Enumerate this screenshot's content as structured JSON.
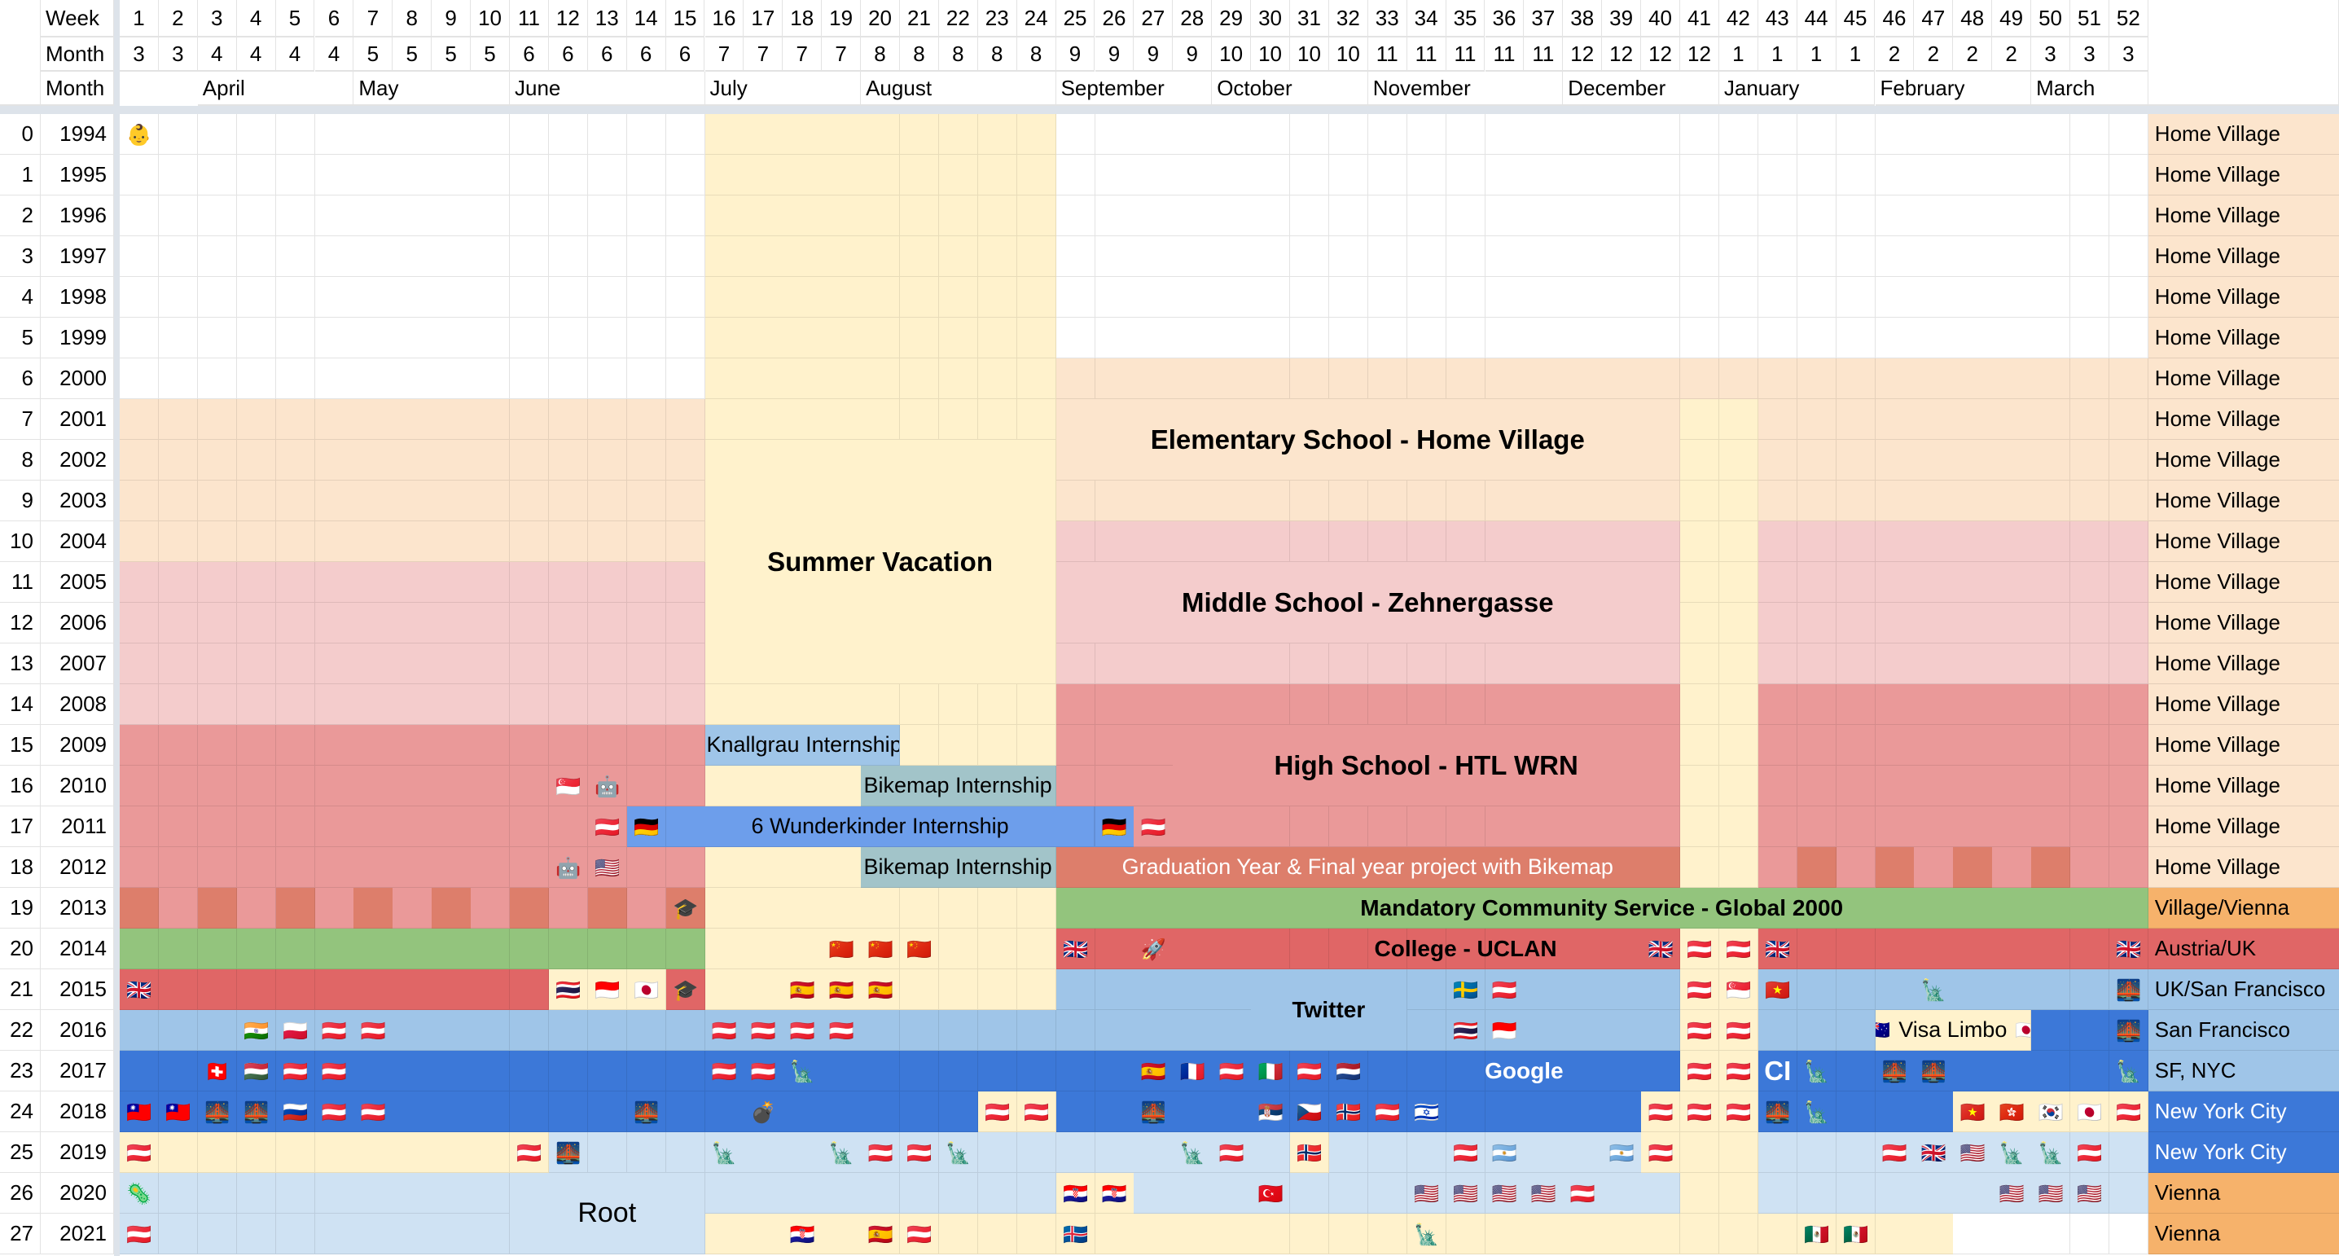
{
  "header": {
    "week_label": "Week",
    "month_label": "Month",
    "month_name_label": "Month",
    "weeks": [
      "1",
      "2",
      "3",
      "4",
      "5",
      "6",
      "7",
      "8",
      "9",
      "10",
      "11",
      "12",
      "13",
      "14",
      "15",
      "16",
      "17",
      "18",
      "19",
      "20",
      "21",
      "22",
      "23",
      "24",
      "25",
      "26",
      "27",
      "28",
      "29",
      "30",
      "31",
      "32",
      "33",
      "34",
      "35",
      "36",
      "37",
      "38",
      "39",
      "40",
      "41",
      "42",
      "43",
      "44",
      "45",
      "46",
      "47",
      "48",
      "49",
      "50",
      "51",
      "52"
    ],
    "months": [
      "3",
      "3",
      "4",
      "4",
      "4",
      "4",
      "5",
      "5",
      "5",
      "5",
      "6",
      "6",
      "6",
      "6",
      "6",
      "7",
      "7",
      "7",
      "7",
      "8",
      "8",
      "8",
      "8",
      "8",
      "9",
      "9",
      "9",
      "9",
      "10",
      "10",
      "10",
      "10",
      "11",
      "11",
      "11",
      "11",
      "11",
      "12",
      "12",
      "12",
      "12",
      "1",
      "1",
      "1",
      "1",
      "2",
      "2",
      "2",
      "2",
      "3",
      "3",
      "3"
    ],
    "month_names": [
      {
        "name": "April",
        "week": 3
      },
      {
        "name": "May",
        "week": 7
      },
      {
        "name": "June",
        "week": 11
      },
      {
        "name": "July",
        "week": 16
      },
      {
        "name": "August",
        "week": 20
      },
      {
        "name": "September",
        "week": 25
      },
      {
        "name": "October",
        "week": 29
      },
      {
        "name": "November",
        "week": 33
      },
      {
        "name": "December",
        "week": 38
      },
      {
        "name": "January",
        "week": 42
      },
      {
        "name": "February",
        "week": 46
      },
      {
        "name": "March",
        "week": 50
      }
    ]
  },
  "palette": {
    "W": "#ffffff",
    "Y": "#fff2cc",
    "P": "#fce5cd",
    "K": "#f4cccc",
    "R": "#ea9999",
    "O": "#dd7e6b",
    "G": "#93c47d",
    "C": "#e06666",
    "L": "#9fc5e8",
    "B": "#3c78d8",
    "S": "#cfe2f3",
    "T": "#a2c4c9",
    "M": "#6d9eeb",
    "A": "#f6b26b"
  },
  "rows": [
    {
      "n": "0",
      "year": "1994",
      "loc": "Home Village",
      "loc_bg": "P",
      "seg": [
        [
          "W",
          15
        ],
        [
          "Y",
          9
        ],
        [
          "W",
          28
        ]
      ],
      "icons": {
        "1": "👶"
      }
    },
    {
      "n": "1",
      "year": "1995",
      "loc": "Home Village",
      "loc_bg": "P",
      "seg": [
        [
          "W",
          15
        ],
        [
          "Y",
          9
        ],
        [
          "W",
          28
        ]
      ],
      "icons": {}
    },
    {
      "n": "2",
      "year": "1996",
      "loc": "Home Village",
      "loc_bg": "P",
      "seg": [
        [
          "W",
          15
        ],
        [
          "Y",
          9
        ],
        [
          "W",
          28
        ]
      ],
      "icons": {}
    },
    {
      "n": "3",
      "year": "1997",
      "loc": "Home Village",
      "loc_bg": "P",
      "seg": [
        [
          "W",
          15
        ],
        [
          "Y",
          9
        ],
        [
          "W",
          28
        ]
      ],
      "icons": {}
    },
    {
      "n": "4",
      "year": "1998",
      "loc": "Home Village",
      "loc_bg": "P",
      "seg": [
        [
          "W",
          15
        ],
        [
          "Y",
          9
        ],
        [
          "W",
          28
        ]
      ],
      "icons": {}
    },
    {
      "n": "5",
      "year": "1999",
      "loc": "Home Village",
      "loc_bg": "P",
      "seg": [
        [
          "W",
          15
        ],
        [
          "Y",
          9
        ],
        [
          "W",
          28
        ]
      ],
      "icons": {}
    },
    {
      "n": "6",
      "year": "2000",
      "loc": "Home Village",
      "loc_bg": "P",
      "seg": [
        [
          "W",
          15
        ],
        [
          "Y",
          9
        ],
        [
          "P",
          28
        ]
      ],
      "icons": {}
    },
    {
      "n": "7",
      "year": "2001",
      "loc": "Home Village",
      "loc_bg": "P",
      "seg": [
        [
          "P",
          15
        ],
        [
          "Y",
          9
        ],
        [
          "P",
          16
        ],
        [
          "Y",
          2
        ],
        [
          "P",
          10
        ]
      ],
      "icons": {}
    },
    {
      "n": "8",
      "year": "2002",
      "loc": "Home Village",
      "loc_bg": "P",
      "seg": [
        [
          "P",
          15
        ],
        [
          "Y",
          9
        ],
        [
          "P",
          16
        ],
        [
          "Y",
          2
        ],
        [
          "P",
          10
        ]
      ],
      "icons": {}
    },
    {
      "n": "9",
      "year": "2003",
      "loc": "Home Village",
      "loc_bg": "P",
      "seg": [
        [
          "P",
          15
        ],
        [
          "Y",
          9
        ],
        [
          "P",
          16
        ],
        [
          "Y",
          2
        ],
        [
          "P",
          10
        ]
      ],
      "icons": {}
    },
    {
      "n": "10",
      "year": "2004",
      "loc": "Home Village",
      "loc_bg": "P",
      "seg": [
        [
          "P",
          15
        ],
        [
          "Y",
          9
        ],
        [
          "K",
          16
        ],
        [
          "Y",
          2
        ],
        [
          "K",
          10
        ]
      ],
      "icons": {}
    },
    {
      "n": "11",
      "year": "2005",
      "loc": "Home Village",
      "loc_bg": "P",
      "seg": [
        [
          "K",
          15
        ],
        [
          "Y",
          9
        ],
        [
          "K",
          16
        ],
        [
          "Y",
          2
        ],
        [
          "K",
          10
        ]
      ],
      "icons": {}
    },
    {
      "n": "12",
      "year": "2006",
      "loc": "Home Village",
      "loc_bg": "P",
      "seg": [
        [
          "K",
          15
        ],
        [
          "Y",
          9
        ],
        [
          "K",
          16
        ],
        [
          "Y",
          2
        ],
        [
          "K",
          10
        ]
      ],
      "icons": {}
    },
    {
      "n": "13",
      "year": "2007",
      "loc": "Home Village",
      "loc_bg": "P",
      "seg": [
        [
          "K",
          15
        ],
        [
          "Y",
          9
        ],
        [
          "K",
          16
        ],
        [
          "Y",
          2
        ],
        [
          "K",
          10
        ]
      ],
      "icons": {}
    },
    {
      "n": "14",
      "year": "2008",
      "loc": "Home Village",
      "loc_bg": "P",
      "seg": [
        [
          "K",
          15
        ],
        [
          "Y",
          9
        ],
        [
          "R",
          16
        ],
        [
          "Y",
          2
        ],
        [
          "R",
          10
        ]
      ],
      "icons": {}
    },
    {
      "n": "15",
      "year": "2009",
      "loc": "Home Village",
      "loc_bg": "P",
      "seg": [
        [
          "R",
          15
        ],
        [
          "L",
          5
        ],
        [
          "Y",
          4
        ],
        [
          "R",
          16
        ],
        [
          "Y",
          2
        ],
        [
          "R",
          10
        ]
      ],
      "icons": {}
    },
    {
      "n": "16",
      "year": "2010",
      "loc": "Home Village",
      "loc_bg": "P",
      "seg": [
        [
          "R",
          15
        ],
        [
          "Y",
          4
        ],
        [
          "T",
          5
        ],
        [
          "R",
          16
        ],
        [
          "Y",
          2
        ],
        [
          "R",
          10
        ]
      ],
      "icons": {
        "12": "🇸🇬",
        "13": "🤖"
      }
    },
    {
      "n": "17",
      "year": "2011",
      "loc": "Home Village",
      "loc_bg": "P",
      "seg": [
        [
          "R",
          13
        ],
        [
          "M",
          13
        ],
        [
          "R",
          14
        ],
        [
          "Y",
          2
        ],
        [
          "R",
          10
        ]
      ],
      "icons": {
        "13": "🇦🇹",
        "14": "🇩🇪",
        "26": "🇩🇪",
        "27": "🇦🇹"
      }
    },
    {
      "n": "18",
      "year": "2012",
      "loc": "Home Village",
      "loc_bg": "P",
      "seg": [
        [
          "R",
          15
        ],
        [
          "Y",
          4
        ],
        [
          "T",
          5
        ],
        [
          "O",
          16
        ],
        [
          "Y",
          2
        ],
        [
          "R",
          1
        ],
        [
          "O",
          1
        ],
        [
          "R",
          1
        ],
        [
          "O",
          1
        ],
        [
          "R",
          1
        ],
        [
          "O",
          1
        ],
        [
          "R",
          1
        ],
        [
          "O",
          1
        ],
        [
          "R",
          2
        ]
      ],
      "icons": {
        "12": "🤖",
        "13": "🇺🇸"
      }
    },
    {
      "n": "19",
      "year": "2013",
      "loc": "Village/Vienna",
      "loc_bg": "A",
      "seg": [
        [
          "O",
          1
        ],
        [
          "R",
          1
        ],
        [
          "O",
          1
        ],
        [
          "R",
          1
        ],
        [
          "O",
          1
        ],
        [
          "R",
          1
        ],
        [
          "O",
          1
        ],
        [
          "R",
          1
        ],
        [
          "O",
          1
        ],
        [
          "R",
          1
        ],
        [
          "O",
          1
        ],
        [
          "R",
          1
        ],
        [
          "O",
          1
        ],
        [
          "R",
          1
        ],
        [
          "O",
          1
        ],
        [
          "Y",
          9
        ],
        [
          "G",
          28
        ]
      ],
      "icons": {
        "15": "🎓"
      }
    },
    {
      "n": "20",
      "year": "2014",
      "loc": "Austria/UK",
      "loc_bg": "C",
      "seg": [
        [
          "G",
          15
        ],
        [
          "Y",
          9
        ],
        [
          "C",
          16
        ],
        [
          "Y",
          2
        ],
        [
          "C",
          10
        ]
      ],
      "icons": {
        "19": "🇨🇳",
        "20": "🇨🇳",
        "21": "🇨🇳",
        "25": "🇬🇧",
        "27": "🚀",
        "40": "🇬🇧",
        "41": "🇦🇹",
        "42": "🇦🇹",
        "43": "🇬🇧",
        "52": "🇬🇧"
      }
    },
    {
      "n": "21",
      "year": "2015",
      "loc": "UK/San Francisco",
      "loc_bg": "L",
      "seg": [
        [
          "C",
          11
        ],
        [
          "Y",
          3
        ],
        [
          "C",
          1
        ],
        [
          "Y",
          9
        ],
        [
          "L",
          16
        ],
        [
          "Y",
          2
        ],
        [
          "L",
          10
        ]
      ],
      "icons": {
        "1": "🇬🇧",
        "12": "🇹🇭",
        "13": "🇮🇩",
        "14": "🇯🇵",
        "15": "🎓",
        "18": "🇪🇸",
        "19": "🇪🇸",
        "20": "🇪🇸",
        "35": "🇸🇪",
        "36": "🇦🇹",
        "41": "🇦🇹",
        "42": "🇸🇬",
        "43": "🇻🇳",
        "47": "🗽",
        "52": "🌉"
      }
    },
    {
      "n": "22",
      "year": "2016",
      "loc": "San Francisco",
      "loc_bg": "L",
      "seg": [
        [
          "L",
          40
        ],
        [
          "Y",
          2
        ],
        [
          "L",
          3
        ],
        [
          "Y",
          4
        ],
        [
          "B",
          3
        ]
      ],
      "icons": {
        "4": "🇮🇳",
        "5": "🇵🇱",
        "6": "🇦🇹",
        "7": "🇦🇹",
        "16": "🇦🇹",
        "17": "🇦🇹",
        "18": "🇦🇹",
        "19": "🇦🇹",
        "35": "🇹🇭",
        "36": "🇮🇩",
        "41": "🇦🇹",
        "42": "🇦🇹",
        "52": "🌉"
      }
    },
    {
      "n": "23",
      "year": "2017",
      "loc": "SF, NYC",
      "loc_bg": "L",
      "seg": [
        [
          "B",
          40
        ],
        [
          "Y",
          2
        ],
        [
          "B",
          10
        ]
      ],
      "icons": {
        "3": "🇨🇭",
        "4": "🇭🇺",
        "5": "🇦🇹",
        "6": "🇦🇹",
        "16": "🇦🇹",
        "17": "🇦🇹",
        "18": "🗽",
        "27": "🇪🇸",
        "28": "🇫🇷",
        "29": "🇦🇹",
        "30": "🇮🇹",
        "31": "🇦🇹",
        "32": "🇳🇱",
        "41": "🇦🇹",
        "42": "🇦🇹",
        "44": "🗽",
        "46": "🌉",
        "47": "🌉",
        "52": "🗽"
      }
    },
    {
      "n": "24",
      "year": "2018",
      "loc": "New York City",
      "loc_bg": "B",
      "seg": [
        [
          "B",
          22
        ],
        [
          "Y",
          2
        ],
        [
          "B",
          15
        ],
        [
          "Y",
          3
        ],
        [
          "B",
          5
        ],
        [
          "Y",
          5
        ]
      ],
      "icons": {
        "1": "🇹🇼",
        "2": "🇹🇼",
        "3": "🌉",
        "4": "🌉",
        "5": "🇷🇺",
        "6": "🇦🇹",
        "7": "🇦🇹",
        "14": "🌉",
        "17": "💣",
        "23": "🇦🇹",
        "24": "🇦🇹",
        "27": "🌉",
        "30": "🇷🇸",
        "31": "🇨🇿",
        "32": "🇳🇴",
        "33": "🇦🇹",
        "34": "🇮🇱",
        "40": "🇦🇹",
        "41": "🇦🇹",
        "42": "🇦🇹",
        "43": "🌉",
        "44": "🗽",
        "48": "🇻🇳",
        "49": "🇭🇰",
        "50": "🇰🇷",
        "51": "🇯🇵",
        "52": "🇦🇹"
      }
    },
    {
      "n": "25",
      "year": "2019",
      "loc": "New York City",
      "loc_bg": "B",
      "seg": [
        [
          "Y",
          11
        ],
        [
          "S",
          19
        ],
        [
          "Y",
          1
        ],
        [
          "S",
          8
        ],
        [
          "Y",
          3
        ],
        [
          "S",
          10
        ]
      ],
      "icons": {
        "1": "🇦🇹",
        "11": "🇦🇹",
        "12": "🌉",
        "16": "🗽",
        "19": "🗽",
        "20": "🇦🇹",
        "21": "🇦🇹",
        "22": "🗽",
        "28": "🗽",
        "29": "🇦🇹",
        "31": "🇳🇴",
        "35": "🇦🇹",
        "36": "🇦🇷",
        "39": "🇦🇷",
        "40": "🇦🇹",
        "46": "🇦🇹",
        "47": "🇬🇧",
        "48": "🇺🇸",
        "49": "🗽",
        "50": "🗽",
        "51": "🇦🇹"
      }
    },
    {
      "n": "26",
      "year": "2020",
      "loc": "Vienna",
      "loc_bg": "A",
      "seg": [
        [
          "S",
          24
        ],
        [
          "Y",
          2
        ],
        [
          "S",
          14
        ],
        [
          "Y",
          2
        ],
        [
          "S",
          10
        ]
      ],
      "icons": {
        "1": "🦠",
        "25": "🇭🇷",
        "26": "🇭🇷",
        "30": "🇹🇷",
        "34": "🇺🇸",
        "35": "🇺🇸",
        "36": "🇺🇸",
        "37": "🇺🇸",
        "38": "🇦🇹",
        "49": "🇺🇸",
        "50": "🇺🇸",
        "51": "🇺🇸"
      }
    },
    {
      "n": "27",
      "year": "2021",
      "loc": "Vienna",
      "loc_bg": "A",
      "seg": [
        [
          "S",
          15
        ],
        [
          "Y",
          32
        ],
        [
          "W",
          5
        ]
      ],
      "icons": {
        "1": "🇦🇹",
        "18": "🇭🇷",
        "20": "🇪🇸",
        "21": "🇦🇹",
        "25": "🇮🇸",
        "34": "🗽",
        "44": "🇲🇽",
        "45": "🇲🇽"
      }
    }
  ],
  "labels": [
    {
      "id": "summer-vacation",
      "text": "Summer Vacation",
      "rows": [
        8,
        13
      ],
      "weeks": [
        16,
        24
      ],
      "bg": "Y",
      "bold": true
    },
    {
      "id": "elementary-school",
      "text": "Elementary School - Home Village",
      "rows": [
        7,
        8
      ],
      "weeks": [
        25,
        40
      ],
      "bg": "P",
      "bold": true
    },
    {
      "id": "middle-school",
      "text": "Middle School - Zehnergasse",
      "rows": [
        11,
        12
      ],
      "weeks": [
        25,
        40
      ],
      "bg": "K",
      "bold": true
    },
    {
      "id": "high-school",
      "text": "High School - HTL WRN",
      "rows": [
        15,
        16
      ],
      "weeks": [
        28,
        40
      ],
      "bg": "R",
      "bold": true
    },
    {
      "id": "knallgrau-internship",
      "text": "Knallgrau Internship",
      "rows": [
        15,
        15
      ],
      "weeks": [
        16,
        20
      ],
      "bg": "L",
      "align": "left"
    },
    {
      "id": "bikemap-internship-2010",
      "text": "Bikemap Internship",
      "rows": [
        16,
        16
      ],
      "weeks": [
        20,
        24
      ],
      "bg": "T",
      "align": "right"
    },
    {
      "id": "wunderkinder-internship",
      "text": "6 Wunderkinder Internship",
      "rows": [
        17,
        17
      ],
      "weeks": [
        15,
        25
      ],
      "bg": "M"
    },
    {
      "id": "bikemap-internship-2012",
      "text": "Bikemap Internship",
      "rows": [
        18,
        18
      ],
      "weeks": [
        20,
        24
      ],
      "bg": "T",
      "align": "right"
    },
    {
      "id": "graduation-year",
      "text": "Graduation Year & Final year project with Bikemap",
      "rows": [
        18,
        18
      ],
      "weeks": [
        25,
        40
      ],
      "bg": "O",
      "color": "#ffffff"
    },
    {
      "id": "community-service",
      "text": "Mandatory Community Service - Global 2000",
      "rows": [
        19,
        19
      ],
      "weeks": [
        25,
        52
      ],
      "bg": "G",
      "bold": true,
      "small": true
    },
    {
      "id": "college-uclan",
      "text": "College - UCLAN",
      "rows": [
        20,
        20
      ],
      "weeks": [
        31,
        39
      ],
      "bold": true,
      "small": true
    },
    {
      "id": "twitter",
      "text": "Twitter",
      "rows": [
        21,
        22
      ],
      "weeks": [
        30,
        33
      ],
      "bg": "L",
      "bold": true,
      "small": true
    },
    {
      "id": "google",
      "text": "Google",
      "rows": [
        23,
        23
      ],
      "weeks": [
        34,
        39
      ],
      "bold": true,
      "small": true,
      "color": "#ffffff"
    },
    {
      "id": "ci",
      "text": "CI",
      "rows": [
        23,
        23
      ],
      "weeks": [
        43,
        43
      ],
      "bold": true,
      "color": "#ffffff"
    },
    {
      "id": "visa-limbo",
      "text": "Visa Limbo",
      "prefix": "🇦🇺",
      "suffix": "🇯🇵",
      "rows": [
        22,
        22
      ],
      "weeks": [
        46,
        49
      ],
      "bg": "Y"
    },
    {
      "id": "root",
      "text": "Root",
      "rows": [
        26,
        27
      ],
      "weeks": [
        11,
        15
      ],
      "bg": "S",
      "big": true
    }
  ]
}
